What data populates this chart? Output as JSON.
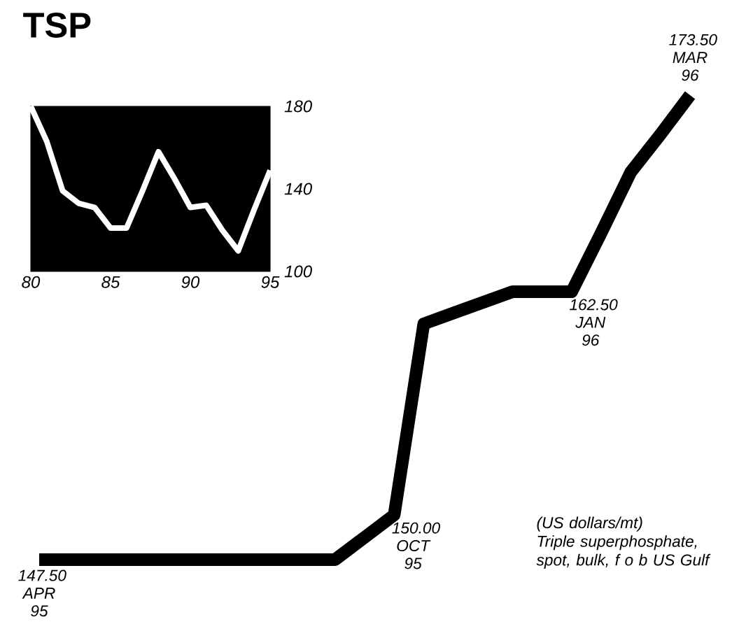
{
  "chart_data": [
    {
      "type": "line",
      "title": "TSP",
      "categories": [
        null,
        null,
        null,
        null,
        null,
        null,
        null,
        null,
        null,
        null,
        null,
        null,
        null,
        null,
        null,
        null,
        null,
        null,
        null,
        null,
        null,
        null,
        null
      ],
      "values": [
        147.5,
        147.5,
        147.5,
        147.5,
        147.5,
        147.5,
        147.5,
        147.5,
        147.5,
        147.5,
        147.5,
        148.75,
        150.0,
        160.7,
        161.3,
        161.9,
        162.5,
        162.5,
        162.5,
        165.8,
        169.2,
        171.3,
        173.5
      ],
      "value_labels": [
        "147.50 APR 95",
        null,
        null,
        null,
        null,
        null,
        null,
        null,
        null,
        null,
        null,
        null,
        "150.00 OCT 95",
        null,
        null,
        null,
        null,
        null,
        "162.50 JAN 96",
        null,
        null,
        null,
        "173.50 MAR 96"
      ],
      "color": "#000000",
      "tick_labels": false,
      "annotations": [
        "(US dollars/mt)",
        "Triple superphosphate, spot, bulk, f o b US Gulf"
      ]
    },
    {
      "type": "line",
      "x": [
        80,
        81,
        82,
        83,
        84,
        85,
        86,
        87,
        88,
        89,
        90,
        91,
        92,
        93,
        94,
        95
      ],
      "values": [
        180,
        163,
        139,
        133,
        131,
        121,
        121,
        139,
        158,
        145,
        131,
        132,
        120,
        110,
        130,
        149
      ],
      "color": "#ffffff",
      "xlim": [
        80,
        95
      ],
      "ylim": [
        100,
        180
      ],
      "xticks": [
        80,
        85,
        90,
        95
      ],
      "yticks": [
        100,
        140,
        180
      ]
    }
  ]
}
